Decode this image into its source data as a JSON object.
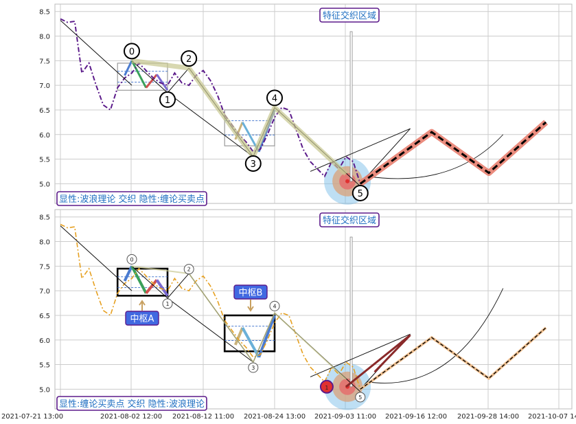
{
  "chart_data": [
    {
      "type": "line",
      "ylim": [
        4.6,
        8.65
      ],
      "yticks": [
        "5.0",
        "5.5",
        "6.0",
        "6.5",
        "7.0",
        "7.5",
        "8.0",
        "8.5"
      ],
      "grid": true,
      "annotation": "特征交织区域",
      "legend_text": "显性:波浪理论 交织 隐性:缠论买卖点",
      "wave_labels": [
        "0",
        "1",
        "2",
        "3",
        "4",
        "5"
      ],
      "series": [
        {
          "style": "dash-dot purple",
          "x": [
            0,
            1,
            2,
            3,
            4,
            5,
            6,
            7,
            8,
            9,
            10,
            11,
            12,
            13,
            14,
            15,
            16,
            17,
            18,
            19,
            20,
            21,
            22,
            23,
            24,
            25,
            26,
            27,
            28,
            29,
            30,
            31,
            32,
            33,
            34,
            35,
            36,
            37,
            38,
            39,
            40,
            41,
            42
          ],
          "y": [
            8.35,
            8.28,
            8.3,
            7.25,
            7.45,
            7.0,
            6.6,
            6.5,
            6.95,
            7.15,
            7.25,
            7.45,
            7.3,
            7.15,
            7.05,
            7.0,
            7.25,
            7.05,
            7.0,
            7.2,
            7.3,
            7.1,
            6.8,
            6.4,
            6.2,
            6.0,
            5.85,
            5.65,
            5.7,
            6.0,
            6.35,
            6.55,
            6.5,
            6.1,
            5.7,
            5.45,
            5.3,
            5.15,
            5.45,
            5.3,
            5.55,
            5.45,
            5.0
          ]
        }
      ],
      "wave_points": [
        {
          "label": "0",
          "x": 10,
          "y": 7.5
        },
        {
          "label": "1",
          "x": 15,
          "y": 6.85
        },
        {
          "label": "2",
          "x": 18,
          "y": 7.35
        },
        {
          "label": "3",
          "x": 27,
          "y": 5.55
        },
        {
          "label": "4",
          "x": 30,
          "y": 6.55
        },
        {
          "label": "5",
          "x": 42,
          "y": 4.95
        }
      ],
      "projection": [
        {
          "x": 42,
          "y": 5.0
        },
        {
          "x": 52,
          "y": 6.05
        },
        {
          "x": 60,
          "y": 5.22
        },
        {
          "x": 68,
          "y": 6.25
        }
      ]
    },
    {
      "type": "line",
      "ylim": [
        4.6,
        8.65
      ],
      "yticks": [
        "5.0",
        "5.5",
        "6.0",
        "6.5",
        "7.0",
        "7.5",
        "8.0",
        "8.5"
      ],
      "grid": true,
      "annotation": "特征交织区域",
      "legend_text": "显性:缠论买卖点 交织 隐性:波浪理论",
      "pivot_labels": [
        "中枢A",
        "中枢B"
      ],
      "wave_labels": [
        "0",
        "1",
        "2",
        "3",
        "4",
        "5",
        "1"
      ],
      "xticks": [
        "2021-07-21 13:00",
        "2021-08-02 12:00",
        "2021-08-12 11:00",
        "2021-08-24 13:00",
        "2021-09-03 11:00",
        "2021-09-16 12:00",
        "2021-09-28 14:00",
        "2021-10-07 14:00"
      ],
      "series": [
        {
          "style": "dash-dot orange",
          "x": [
            0,
            1,
            2,
            3,
            4,
            5,
            6,
            7,
            8,
            9,
            10,
            11,
            12,
            13,
            14,
            15,
            16,
            17,
            18,
            19,
            20,
            21,
            22,
            23,
            24,
            25,
            26,
            27,
            28,
            29,
            30,
            31,
            32,
            33,
            34,
            35,
            36,
            37,
            38,
            39,
            40,
            41,
            42
          ],
          "y": [
            8.35,
            8.28,
            8.3,
            7.25,
            7.45,
            7.0,
            6.6,
            6.5,
            6.95,
            7.15,
            7.25,
            7.45,
            7.3,
            7.15,
            7.05,
            7.0,
            7.25,
            7.05,
            7.0,
            7.2,
            7.3,
            7.1,
            6.8,
            6.4,
            6.2,
            6.0,
            5.85,
            5.65,
            5.7,
            6.0,
            6.35,
            6.55,
            6.5,
            6.1,
            5.7,
            5.45,
            5.3,
            5.15,
            5.45,
            5.3,
            5.55,
            5.45,
            5.0
          ]
        }
      ],
      "wave_points": [
        {
          "label": "0",
          "x": 10,
          "y": 7.5
        },
        {
          "label": "1",
          "x": 15,
          "y": 6.85
        },
        {
          "label": "2",
          "x": 18,
          "y": 7.3
        },
        {
          "label": "3",
          "x": 27,
          "y": 5.55
        },
        {
          "label": "4",
          "x": 30,
          "y": 6.55
        },
        {
          "label": "5",
          "x": 42,
          "y": 4.95
        }
      ],
      "projection": [
        {
          "x": 42,
          "y": 5.0
        },
        {
          "x": 52,
          "y": 6.05
        },
        {
          "x": 60,
          "y": 5.22
        },
        {
          "x": 68,
          "y": 6.25
        }
      ]
    }
  ],
  "colors": {
    "purple": "#5b1a8a",
    "orange": "#e6a020",
    "red_zone": "#e03030",
    "blue_zone": "#6fb7e6",
    "label_blue": "#1f6fc2",
    "pivot_blue": "#4169e1",
    "grid": "#cccccc"
  }
}
